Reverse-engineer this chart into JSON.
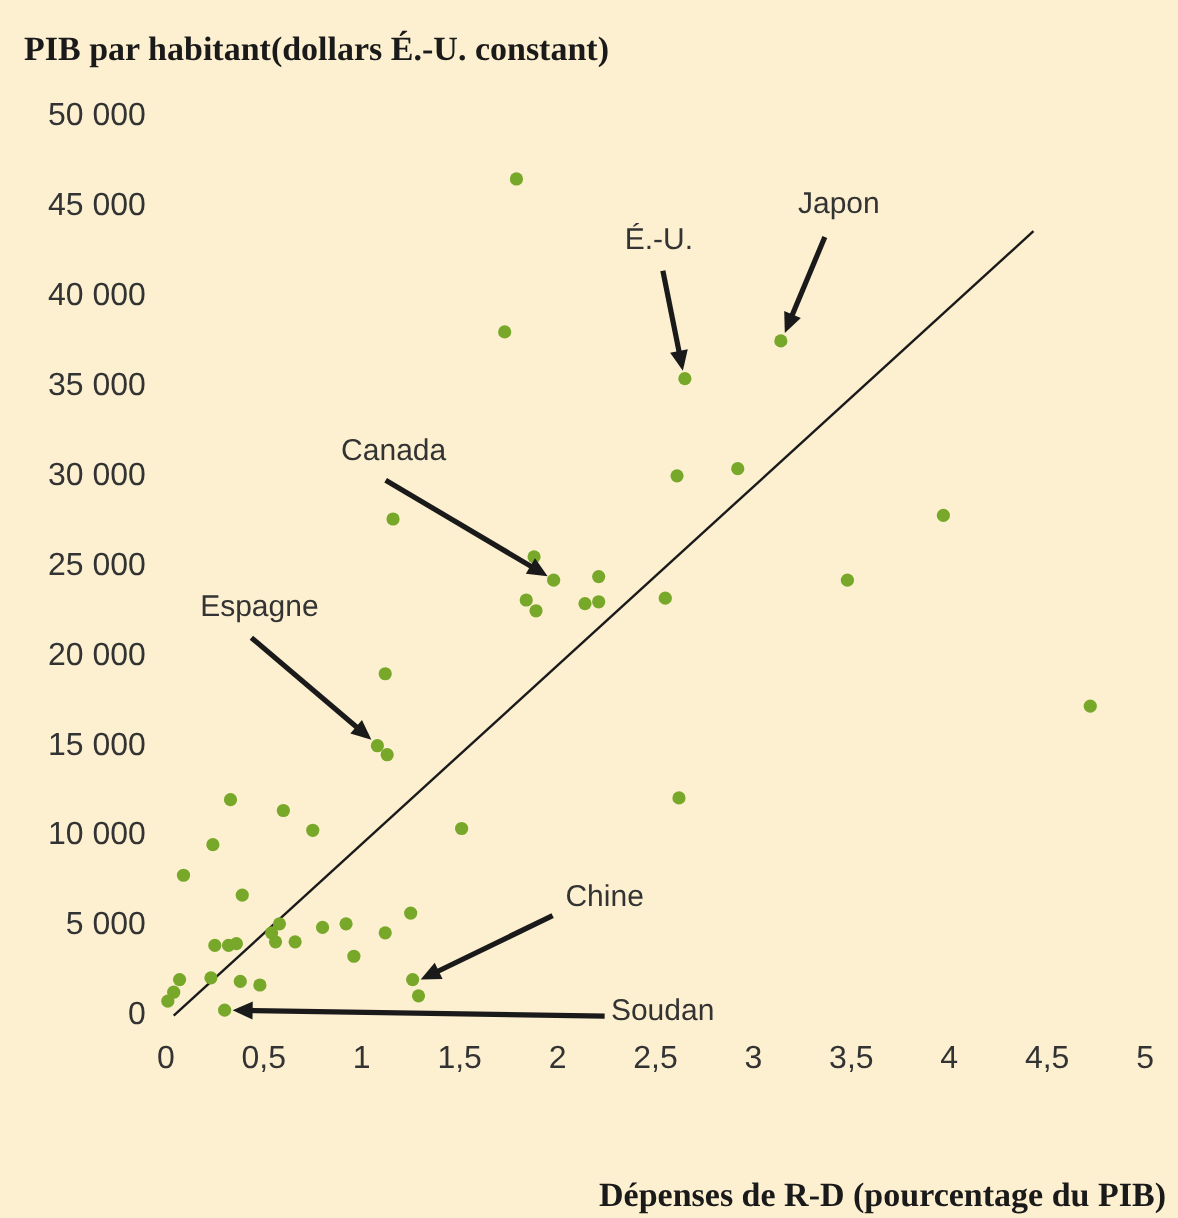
{
  "chart_data": {
    "type": "scatter",
    "xlabel": "Dépenses de R-D (pourcentage du PIB)",
    "ylabel": "PIB par habitant(dollars É.-U. constant)",
    "series": [
      {
        "color": "#78a82a",
        "marker": "circle",
        "x": [
          1.79,
          1.73,
          2.65,
          3.14,
          2.61,
          2.92,
          3.97,
          3.48,
          4.72,
          2.62,
          1.16,
          1.88,
          1.98,
          1.84,
          1.89,
          2.21,
          2.14,
          2.21,
          2.55,
          1.12,
          1.08,
          1.13,
          0.33,
          0.6,
          0.75,
          0.24,
          1.51,
          0.09,
          0.39,
          1.25,
          0.92,
          0.8,
          1.12,
          0.58,
          0.54,
          0.56,
          0.66,
          0.25,
          0.32,
          0.36,
          0.96,
          0.07,
          0.23,
          0.38,
          0.48,
          0.04,
          0.01,
          1.26,
          1.29,
          0.3
        ],
        "values": [
          46500,
          38000,
          35400,
          37500,
          30000,
          30400,
          27800,
          24200,
          17200,
          12100,
          27600,
          25500,
          24200,
          23100,
          22500,
          24400,
          22900,
          23000,
          23200,
          19000,
          15000,
          14500,
          12000,
          11400,
          10300,
          9500,
          10400,
          7800,
          6700,
          5700,
          5100,
          4900,
          4600,
          5100,
          4600,
          4100,
          4100,
          3900,
          3900,
          4000,
          3300,
          2000,
          2100,
          1900,
          1700,
          1300,
          800,
          2000,
          1100,
          300
        ]
      },
      {
        "type": "line",
        "color": "#1a1a1a",
        "marker": "none",
        "x": [
          0.04,
          4.43
        ],
        "values": [
          0,
          43600
        ]
      }
    ],
    "xlim": [
      0,
      5
    ],
    "ylim": [
      0,
      50000
    ],
    "xticks": [
      0,
      {
        "value": 0.5,
        "label": "0,5"
      },
      1,
      {
        "value": 1.5,
        "label": "1,5"
      },
      2,
      {
        "value": 2.5,
        "label": "2,5"
      },
      3,
      {
        "value": 3.5,
        "label": "3,5"
      },
      4,
      {
        "value": 4.5,
        "label": "4,5"
      },
      5
    ],
    "yticks": [
      0,
      {
        "value": 5000,
        "label": "5 000"
      },
      {
        "value": 10000,
        "label": "10 000"
      },
      {
        "value": 15000,
        "label": "15 000"
      },
      {
        "value": 20000,
        "label": "20 000"
      },
      {
        "value": 25000,
        "label": "25 000"
      },
      {
        "value": 30000,
        "label": "30 000"
      },
      {
        "value": 35000,
        "label": "35 000"
      },
      {
        "value": 40000,
        "label": "40 000"
      },
      {
        "value": 45000,
        "label": "45 000"
      },
      {
        "value": 50000,
        "label": "50 000"
      }
    ],
    "annotations": [
      {
        "text": "É.-U.",
        "x": 2.65,
        "y": 35400
      },
      {
        "text": "Japon",
        "x": 3.14,
        "y": 37500
      },
      {
        "text": "Canada",
        "x": 1.98,
        "y": 24200
      },
      {
        "text": "Espagne",
        "x": 1.08,
        "y": 15000
      },
      {
        "text": "Chine",
        "x": 1.26,
        "y": 2000
      },
      {
        "text": "Soudan",
        "x": 0.3,
        "y": 300
      }
    ],
    "grid": false,
    "legend": false,
    "line_style": "solid"
  }
}
